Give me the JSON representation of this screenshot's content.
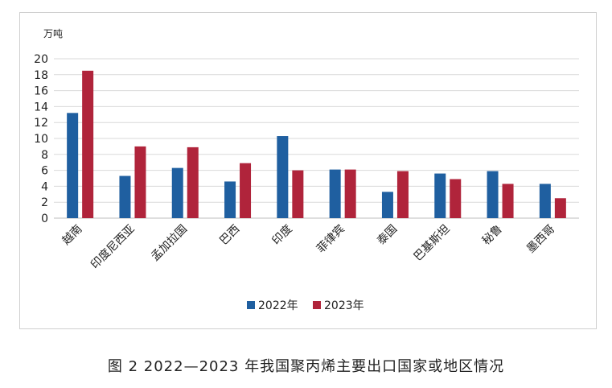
{
  "caption": "图 2  2022—2023 年我国聚丙烯主要出口国家或地区情况",
  "chart_data": {
    "type": "bar",
    "ylabel": "万吨",
    "ylim": [
      0,
      20
    ],
    "yticks": [
      0,
      2,
      4,
      6,
      8,
      10,
      12,
      14,
      16,
      18,
      20
    ],
    "grid": true,
    "legend_position": "bottom",
    "categories": [
      "越南",
      "印度尼西亚",
      "孟加拉国",
      "巴西",
      "印度",
      "菲律宾",
      "泰国",
      "巴基斯坦",
      "秘鲁",
      "墨西哥"
    ],
    "series": [
      {
        "name": "2022年",
        "color": "#1f5fa0",
        "values": [
          13.2,
          5.3,
          6.3,
          4.6,
          10.3,
          6.1,
          3.3,
          5.6,
          5.9,
          4.3
        ]
      },
      {
        "name": "2023年",
        "color": "#b0243b",
        "values": [
          18.5,
          9.0,
          8.9,
          6.9,
          6.0,
          6.1,
          5.9,
          4.9,
          4.3,
          2.5
        ]
      }
    ]
  }
}
